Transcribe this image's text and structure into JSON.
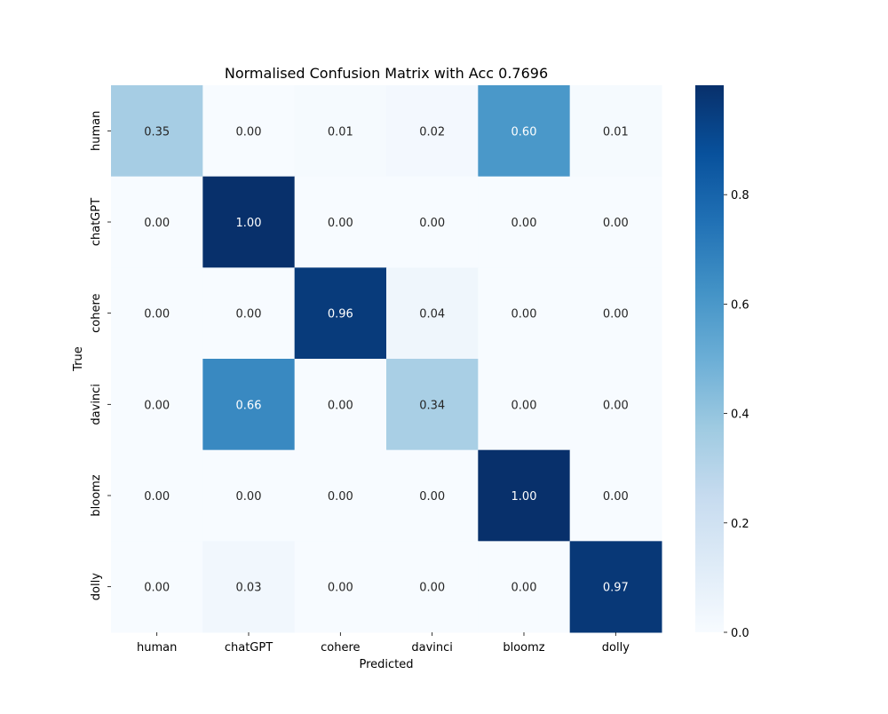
{
  "chart_data": {
    "type": "heatmap",
    "title": "Normalised Confusion Matrix with Acc 0.7696",
    "xlabel": "Predicted",
    "ylabel": "True",
    "x_categories": [
      "human",
      "chatGPT",
      "cohere",
      "davinci",
      "bloomz",
      "dolly"
    ],
    "y_categories": [
      "human",
      "chatGPT",
      "cohere",
      "davinci",
      "bloomz",
      "dolly"
    ],
    "values": [
      [
        0.35,
        0.0,
        0.01,
        0.02,
        0.6,
        0.01
      ],
      [
        0.0,
        1.0,
        0.0,
        0.0,
        0.0,
        0.0
      ],
      [
        0.0,
        0.0,
        0.96,
        0.04,
        0.0,
        0.0
      ],
      [
        0.0,
        0.66,
        0.0,
        0.34,
        0.0,
        0.0
      ],
      [
        0.0,
        0.0,
        0.0,
        0.0,
        1.0,
        0.0
      ],
      [
        0.0,
        0.03,
        0.0,
        0.0,
        0.0,
        0.97
      ]
    ],
    "colormap": "Blues",
    "colorbar": {
      "range": [
        0.0,
        1.0
      ],
      "ticks": [
        0.0,
        0.2,
        0.4,
        0.6,
        0.8
      ],
      "tick_labels": [
        "0.0",
        "0.2",
        "0.4",
        "0.6",
        "0.8"
      ]
    },
    "grid": false,
    "legend": "none"
  }
}
